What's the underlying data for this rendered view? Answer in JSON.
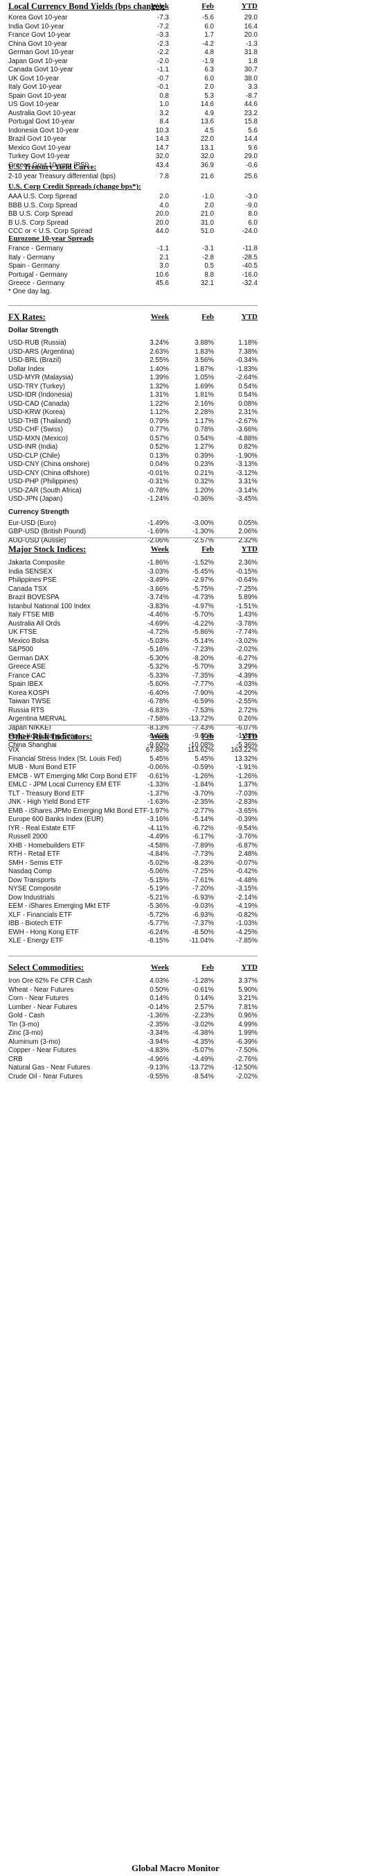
{
  "bonds": {
    "title": "Local Currency Bond Yields (bps change):",
    "headers": [
      "Week",
      "Feb",
      "YTD"
    ],
    "rows": [
      [
        "Korea Govt 10-year",
        "-7.3",
        "-5.6",
        "29.0"
      ],
      [
        "India Govt 10-year",
        "-7.2",
        "6.0",
        "16.4"
      ],
      [
        "France Govt 10-year",
        "-3.3",
        "1.7",
        "20.0"
      ],
      [
        "China Govt 10-year",
        "-2.3",
        "-4.2",
        "-1.3"
      ],
      [
        "German Govt 10-year",
        "-2.2",
        "4.8",
        "31.8"
      ],
      [
        "Japan Govt 10-year",
        "-2.0",
        "-1.9",
        "1.8"
      ],
      [
        "Canada Govt 10-year",
        "-1.1",
        "6.3",
        "30.7"
      ],
      [
        "UK Govt 10-year",
        "-0.7",
        "6.0",
        "38.0"
      ],
      [
        "Italy Govt 10-year",
        "-0.1",
        "2.0",
        "3.3"
      ],
      [
        "Spain Govt 10-year",
        "0.8",
        "5.3",
        "-8.7"
      ],
      [
        "US Govt 10-year",
        "1.0",
        "14.6",
        "44.6"
      ],
      [
        "Australia Govt 10-year",
        "3.2",
        "4.9",
        "23.2"
      ],
      [
        "Portugal Govt 10-year",
        "8.4",
        "13.6",
        "15.8"
      ],
      [
        "Indonesia Govt 10-year",
        "10.3",
        "4.5",
        "5.6"
      ],
      [
        "Brazil Govt 10-year",
        "14.3",
        "22.0",
        "14.4"
      ],
      [
        "Mexico Govt 10-year",
        "14.7",
        "13.1",
        "9.6"
      ],
      [
        "Turkey Govt 10-year",
        "32.0",
        "32.0",
        "29.0"
      ],
      [
        "Greece Govt 10-year (PSI)",
        "43.4",
        "36.9",
        "-0.6"
      ]
    ]
  },
  "treasury": {
    "title": "U.S. Treasury Yield Curve:",
    "rows": [
      [
        "2-10 year Treasury differential (bps)",
        "7.8",
        "21.6",
        "25.6"
      ]
    ]
  },
  "credit": {
    "title": "U.S. Corp Credit Spreads (change bps*):",
    "rows": [
      [
        "AAA U.S. Corp Spread",
        "2.0",
        "-1.0",
        "-3.0"
      ],
      [
        "BBB U.S. Corp Spread",
        "4.0",
        "2.0",
        "-9.0"
      ],
      [
        "BB U.S. Corp Spread",
        "20.0",
        "21.0",
        "8.0"
      ],
      [
        "B U.S. Corp Spread",
        "20.0",
        "31.0",
        "6.0"
      ],
      [
        "CCC or < U.S. Corp Spread",
        "44.0",
        "51.0",
        "-24.0"
      ]
    ]
  },
  "eurozone": {
    "title": "Eurozone 10-year Spreads",
    "rows": [
      [
        "France - Germany",
        "-1.1",
        "-3.1",
        "-11.8"
      ],
      [
        "Italy - Germany",
        "2.1",
        "-2.8",
        "-28.5"
      ],
      [
        "Spain - Germany",
        "3.0",
        "0.5",
        "-40.5"
      ],
      [
        "Portugal - Germany",
        "10.6",
        "8.8",
        "-16.0"
      ],
      [
        "Greece - Germany",
        "45.6",
        "32.1",
        "-32.4"
      ]
    ],
    "note": "* One day lag."
  },
  "fx": {
    "title": "FX Rates:",
    "headers": [
      "Week",
      "Feb",
      "YTD"
    ],
    "dollar_title": "Dollar Strength",
    "dollar_rows": [
      [
        "USD-RUB (Russia)",
        "3.24%",
        "3.88%",
        "1.18%"
      ],
      [
        "USD-ARS (Argentina)",
        "2.63%",
        "1.83%",
        "7.38%"
      ],
      [
        "USD-BRL (Brazil)",
        "2.55%",
        "3.56%",
        "-0.34%"
      ],
      [
        "Dollar Index",
        "1.40%",
        "1.87%",
        "-1.83%"
      ],
      [
        "USD-MYR (Malaysia)",
        "1.39%",
        "1.05%",
        "-2.64%"
      ],
      [
        "USD-TRY (Turkey)",
        "1.32%",
        "1.69%",
        "0.54%"
      ],
      [
        "USD-IDR (Indonesia)",
        "1.31%",
        "1.81%",
        "0.54%"
      ],
      [
        "USD-CAD (Canada)",
        "1.22%",
        "2.16%",
        "0.08%"
      ],
      [
        "USD-KRW (Korea)",
        "1.12%",
        "2.28%",
        "2.31%"
      ],
      [
        "USD-THB (Thailand)",
        "0.79%",
        "1.17%",
        "-2.67%"
      ],
      [
        "USD-CHF (Swiss)",
        "0.77%",
        "0.78%",
        "-3.66%"
      ],
      [
        "USD-MXN (Mexico)",
        "0.57%",
        "0.54%",
        "-4.88%"
      ],
      [
        "USD-INR (India)",
        "0.52%",
        "1.27%",
        "0.82%"
      ],
      [
        "USD-CLP (Chile)",
        "0.13%",
        "0.39%",
        "-1.90%"
      ],
      [
        "USD-CNY (China onshore)",
        "0.04%",
        "0.23%",
        "-3.13%"
      ],
      [
        "USD-CNY (China offshore)",
        "-0.01%",
        "0.21%",
        "-3.12%"
      ],
      [
        "USD-PHP (Philippines)",
        "-0.31%",
        "0.32%",
        "3.31%"
      ],
      [
        "USD-ZAR (South Africa)",
        "-0.78%",
        "1.20%",
        "-3.14%"
      ],
      [
        "USD-JPN (Japan)",
        "-1.24%",
        "-0.36%",
        "-3.45%"
      ]
    ],
    "currency_title": "Currency Strength",
    "currency_rows": [
      [
        "Eur-USD (Euro)",
        "-1.49%",
        "-3.00%",
        "0.05%"
      ],
      [
        "GBP-USD (British Pound)",
        "-1.69%",
        "-1.30%",
        "2.06%"
      ],
      [
        "AUD-USD (Aussie)",
        "-2.06%",
        "-2.57%",
        "2.32%"
      ]
    ]
  },
  "stocks": {
    "title": "Major Stock Indices:",
    "headers": [
      "Week",
      "Feb",
      "YTD"
    ],
    "rows": [
      [
        "Jakarta Composite",
        "-1.86%",
        "-1.52%",
        "2.36%"
      ],
      [
        "India SENSEX",
        "-3.03%",
        "-5.45%",
        "-0.15%"
      ],
      [
        "Philippines PSE",
        "-3.49%",
        "-2.97%",
        "-0.64%"
      ],
      [
        "Canada TSX",
        "-3.66%",
        "-5.75%",
        "-7.25%"
      ],
      [
        "Brazil BOVESPA",
        "-3.74%",
        "-4.73%",
        "5.89%"
      ],
      [
        "Istanbul National 100 Index",
        "-3.83%",
        "-4.97%",
        "-1.51%"
      ],
      [
        "Italy FTSE MIB",
        "-4.46%",
        "-5.70%",
        "1.43%"
      ],
      [
        "Australia All Ords",
        "-4.69%",
        "-4.22%",
        "-3.78%"
      ],
      [
        "UK FTSE",
        "-4.72%",
        "-5.86%",
        "-7.74%"
      ],
      [
        "Mexico Bolsa",
        "-5.03%",
        "-5.14%",
        "-3.02%"
      ],
      [
        "S&P500",
        "-5.16%",
        "-7.23%",
        "-2.02%"
      ],
      [
        "German DAX",
        "-5.30%",
        "-8.20%",
        "-6.27%"
      ],
      [
        "Greece ASE",
        "-5.32%",
        "-5.70%",
        "3.29%"
      ],
      [
        "France CAC",
        "-5.33%",
        "-7.35%",
        "-4.39%"
      ],
      [
        "Spain IBEX",
        "-5.60%",
        "-7.77%",
        "-4.03%"
      ],
      [
        "Korea KOSPI",
        "-6.40%",
        "-7.90%",
        "-4.20%"
      ],
      [
        "Taiwan TWSE",
        "-6.78%",
        "-6.59%",
        "-2.55%"
      ],
      [
        "Russia RTS",
        "-6.83%",
        "-7.53%",
        "2.72%"
      ],
      [
        "Argentina MERVAL",
        "-7.58%",
        "-13.72%",
        "0.26%"
      ],
      [
        "Japan NIKKEI",
        "-8.13%",
        "-7.43%",
        "-6.07%"
      ],
      [
        "Hong Kong Hang Seng",
        "-9.49%",
        "-9.60%",
        "-1.38%"
      ],
      [
        "China Shanghai",
        "-9.60%",
        "-10.08%",
        "-5.36%"
      ]
    ]
  },
  "risk": {
    "title": "Other Risk Indicators:",
    "headers": [
      "Week",
      "Feb",
      "YTD"
    ],
    "rows": [
      [
        "VIX",
        "67.88%",
        "114.62%",
        "163.22%"
      ],
      [
        "Financial Stress Index (St. Louis Fed)",
        "5.45%",
        "5.45%",
        "13.32%"
      ],
      [
        "MUB - Muni Bond ETF",
        "-0.06%",
        "-0.59%",
        "-1.91%"
      ],
      [
        "EMCB - WT Emerging Mkt Corp Bond ETF",
        "-0.61%",
        "-1.26%",
        "-1.26%"
      ],
      [
        "EMLC - JPM Local Currency EM ETF",
        "-1.33%",
        "-1.84%",
        "1.37%"
      ],
      [
        "TLT - Treasury Bond ETF",
        "-1.37%",
        "-3.70%",
        "-7.03%"
      ],
      [
        "JNK - High Yield Bond ETF",
        "-1.63%",
        "-2.35%",
        "-2.83%"
      ],
      [
        "EMB - iShares JPMo Emerging Mkt Bond ETF",
        "-1.97%",
        "-2.77%",
        "-3.65%"
      ],
      [
        "Europe 600 Banks Index (EUR)",
        "-3.16%",
        "-5.14%",
        "-0.39%"
      ],
      [
        "IYR - Real Estate ETF",
        "-4.11%",
        "-6.72%",
        "-9.54%"
      ],
      [
        "Russell 2000",
        "-4.49%",
        "-6.17%",
        "-3.76%"
      ],
      [
        "XHB - Homebuilders ETF",
        "-4.58%",
        "-7.89%",
        "-6.87%"
      ],
      [
        "RTH - Retail ETF",
        "-4.84%",
        "-7.73%",
        "2.48%"
      ],
      [
        "SMH - Semis ETF",
        "-5.02%",
        "-8.23%",
        "-0.07%"
      ],
      [
        "Nasdaq Comp",
        "-5.06%",
        "-7.25%",
        "-0.42%"
      ],
      [
        "Dow Transports",
        "-5.15%",
        "-7.61%",
        "-4.48%"
      ],
      [
        "NYSE Composite",
        "-5.19%",
        "-7.20%",
        "-3.15%"
      ],
      [
        "Dow Industrials",
        "-5.21%",
        "-6.93%",
        "-2.14%"
      ],
      [
        "EEM - iShares Emerging Mkt ETF",
        "-5.36%",
        "-9.03%",
        "-4.19%"
      ],
      [
        "XLF - Financials ETF",
        "-5.72%",
        "-6.93%",
        "-0.82%"
      ],
      [
        "IBB - Biotech ETF",
        "-5.77%",
        "-7.37%",
        "-1.03%"
      ],
      [
        "EWH - Hong Kong ETF",
        "-6.24%",
        "-8.50%",
        "-4.25%"
      ],
      [
        "XLE - Energy ETF",
        "-8.15%",
        "-11.04%",
        "-7.85%"
      ]
    ]
  },
  "commodities": {
    "title": "Select Commodities:",
    "headers": [
      "Week",
      "Feb",
      "YTD"
    ],
    "rows": [
      [
        "Iron Ore 62% Fe CFR Cash",
        "4.03%",
        "-1.28%",
        "3.37%"
      ],
      [
        "Wheat - Near Futures",
        "0.50%",
        "-0.61%",
        "5.90%"
      ],
      [
        "Corn - Near Futures",
        "0.14%",
        "0.14%",
        "3.21%"
      ],
      [
        "Lumber - Near Futures",
        "-0.14%",
        "2.57%",
        "7.81%"
      ],
      [
        "Gold - Cash",
        "-1.36%",
        "-2.23%",
        "0.96%"
      ],
      [
        "Tin (3-mo)",
        "-2.35%",
        "-3.02%",
        "4.99%"
      ],
      [
        "Zinc (3-mo)",
        "-3.34%",
        "-4.38%",
        "1.99%"
      ],
      [
        "Aluminum (3-mo)",
        "-3.94%",
        "-4.35%",
        "-6.39%"
      ],
      [
        "Copper - Near Futures",
        "-4.83%",
        "-5.07%",
        "-7.50%"
      ],
      [
        "CRB",
        "-4.96%",
        "-4.49%",
        "-2.76%"
      ],
      [
        "Natural Gas - Near Futures",
        "-9.13%",
        "-13.72%",
        "-12.50%"
      ],
      [
        "Crude Oil - Near Futures",
        "-9.55%",
        "-8.54%",
        "-2.02%"
      ]
    ]
  },
  "footer": "Global Macro Monitor"
}
